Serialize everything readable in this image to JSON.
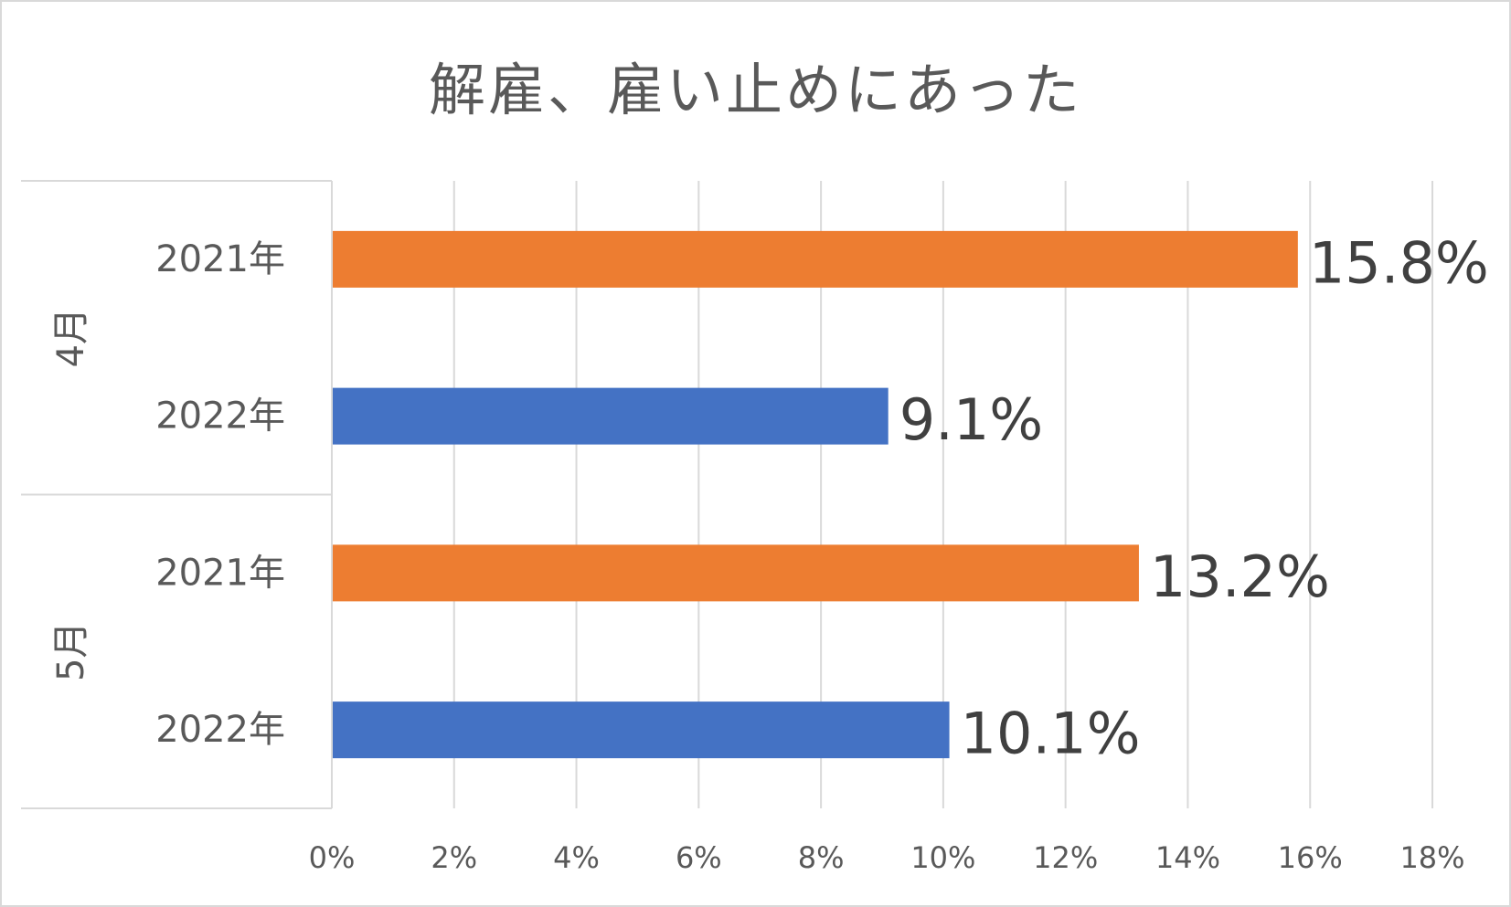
{
  "chart_data": {
    "type": "bar",
    "orientation": "horizontal",
    "title": "解雇、雇い止めにあった",
    "groups": [
      {
        "label": "4月",
        "bars": [
          {
            "category": "2021年",
            "value": 15.8,
            "label": "15.8%",
            "color": "#ED7D31"
          },
          {
            "category": "2022年",
            "value": 9.1,
            "label": "9.1%",
            "color": "#4472C4"
          }
        ]
      },
      {
        "label": "5月",
        "bars": [
          {
            "category": "2021年",
            "value": 13.2,
            "label": "13.2%",
            "color": "#ED7D31"
          },
          {
            "category": "2022年",
            "value": 10.1,
            "label": "10.1%",
            "color": "#4472C4"
          }
        ]
      }
    ],
    "xlim": [
      0,
      18
    ],
    "xticks": [
      0,
      2,
      4,
      6,
      8,
      10,
      12,
      14,
      16,
      18
    ],
    "xtick_labels": [
      "0%",
      "2%",
      "4%",
      "6%",
      "8%",
      "10%",
      "12%",
      "14%",
      "16%",
      "18%"
    ],
    "grid": true,
    "legend": "none"
  }
}
